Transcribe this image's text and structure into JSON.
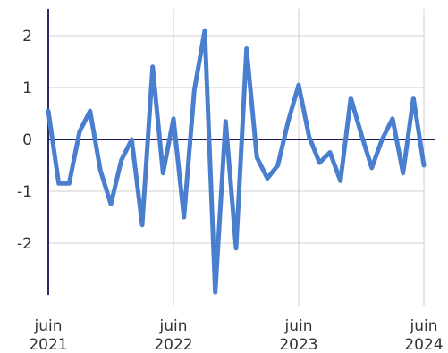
{
  "chart_data": {
    "type": "line",
    "title": "",
    "xlabel": "",
    "ylabel": "",
    "ylim": [
      -3,
      2.2
    ],
    "yticks": [
      2,
      1,
      0,
      -1,
      -2
    ],
    "ytick_labels": [
      "2",
      "1",
      "0",
      "-1",
      "-2"
    ],
    "xticks": [
      {
        "date": "2021-06",
        "label_month": "juin",
        "label_year": "2021"
      },
      {
        "date": "2022-06",
        "label_month": "juin",
        "label_year": "2022"
      },
      {
        "date": "2023-06",
        "label_month": "juin",
        "label_year": "2023"
      },
      {
        "date": "2024-06",
        "label_month": "juin",
        "label_year": "2024"
      }
    ],
    "grid": true,
    "colors": {
      "series": "#4a7fcf",
      "zero_line": "#1f1a5c",
      "grid": "#cfcfcf"
    },
    "series": [
      {
        "x": [
          "2021-06",
          "2021-07",
          "2021-08",
          "2021-09",
          "2021-10",
          "2021-11",
          "2021-12",
          "2022-01",
          "2022-02",
          "2022-03",
          "2022-04",
          "2022-05",
          "2022-06",
          "2022-07",
          "2022-08",
          "2022-09",
          "2022-10",
          "2022-11",
          "2022-12",
          "2023-01",
          "2023-02",
          "2023-03",
          "2023-04",
          "2023-05",
          "2023-06",
          "2023-07",
          "2023-08",
          "2023-09",
          "2023-10",
          "2023-11",
          "2023-12",
          "2024-01",
          "2024-02",
          "2024-03",
          "2024-04",
          "2024-05",
          "2024-06"
        ],
        "values": [
          0.55,
          -0.85,
          -0.85,
          0.15,
          0.55,
          -0.6,
          -1.25,
          -0.4,
          0.0,
          -1.65,
          1.4,
          -0.65,
          0.4,
          -1.5,
          0.95,
          2.1,
          -2.95,
          0.35,
          -2.1,
          1.75,
          -0.35,
          -0.75,
          -0.5,
          0.35,
          1.05,
          0.05,
          -0.45,
          -0.25,
          -0.8,
          0.8,
          0.1,
          -0.55,
          0.0,
          0.4,
          -0.65,
          0.8,
          -0.5
        ]
      }
    ]
  }
}
